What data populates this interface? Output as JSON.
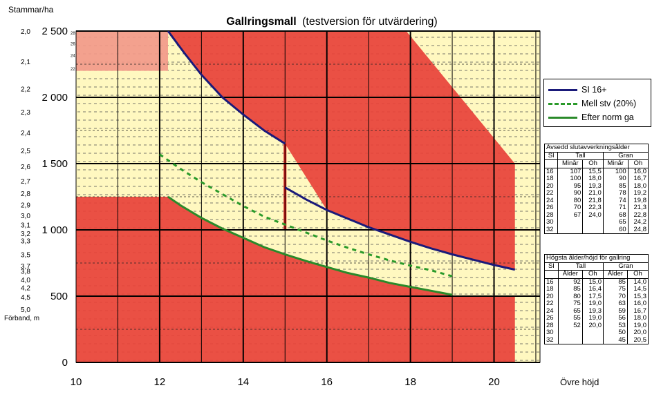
{
  "chart_data": {
    "type": "line",
    "title_bold": "Gallringsmall",
    "title_rest": "(testversion för utvärdering)",
    "ylabel": "Stammar/ha",
    "xlabel": "Övre höjd",
    "xlim": [
      10,
      21.1
    ],
    "ylim": [
      0,
      2500
    ],
    "x_ticks": [
      "10",
      "12",
      "14",
      "16",
      "18",
      "20"
    ],
    "y_ticks": [
      "0",
      "500",
      "1 000",
      "1 500",
      "2 000",
      "2 500"
    ],
    "spacing_label": "Förband, m",
    "spacing_ticks": [
      {
        "label": "2,0",
        "y": 2500
      },
      {
        "label": "2,1",
        "y": 2270
      },
      {
        "label": "2,2",
        "y": 2065
      },
      {
        "label": "2,3",
        "y": 1890
      },
      {
        "label": "2,4",
        "y": 1735
      },
      {
        "label": "2,5",
        "y": 1600
      },
      {
        "label": "2,6",
        "y": 1480
      },
      {
        "label": "2,7",
        "y": 1370
      },
      {
        "label": "2,8",
        "y": 1275
      },
      {
        "label": "2,9",
        "y": 1190
      },
      {
        "label": "3,0",
        "y": 1110
      },
      {
        "label": "3,1",
        "y": 1040
      },
      {
        "label": "3,2",
        "y": 975
      },
      {
        "label": "3,3",
        "y": 920
      },
      {
        "label": "3,5",
        "y": 815
      },
      {
        "label": "3,7",
        "y": 730
      },
      {
        "label": "3,8",
        "y": 690
      },
      {
        "label": "4,0",
        "y": 625
      },
      {
        "label": "4,2",
        "y": 565
      },
      {
        "label": "4,5",
        "y": 495
      },
      {
        "label": "5,0",
        "y": 400
      }
    ],
    "inner_ticks": [
      {
        "label": "28",
        "y": 2490
      },
      {
        "label": "26",
        "y": 2410
      },
      {
        "label": "24",
        "y": 2320
      },
      {
        "label": "22",
        "y": 2220
      }
    ],
    "regions": {
      "colors": {
        "forbidden": "#e8433a",
        "allowed": "#fff8c0",
        "light_band": "#f29a8a",
        "vertical_bar": "#cc1a1a"
      },
      "top_band": {
        "x": [
          10,
          12.2
        ],
        "y_low": 2200,
        "y_high": 2500
      },
      "bottom_left": {
        "x_end": 12.15,
        "y": 1250
      },
      "bottom_right": {
        "x_start": 19,
        "x_end": 20.5,
        "y": 500
      },
      "right_polygon": [
        [
          15.2,
          2500
        ],
        [
          20,
          2500
        ],
        [
          20,
          2500
        ],
        [
          20.5,
          2500
        ]
      ],
      "right_upper": [
        [
          17.9,
          2500
        ],
        [
          20.5,
          1500
        ],
        [
          20.5,
          500
        ],
        [
          20.5,
          0
        ]
      ],
      "vertical_bar": {
        "x": 15.0,
        "y_low": 1000,
        "y_high": 1650
      }
    },
    "series": [
      {
        "name": "SI 16+",
        "color": "#1a1a7a",
        "style": "solid",
        "x": [
          12.2,
          12.6,
          13.0,
          13.5,
          14.0,
          14.5,
          15.0
        ],
        "y": [
          2500,
          2330,
          2170,
          2000,
          1870,
          1750,
          1650
        ]
      },
      {
        "name": "",
        "color": "#1a1a7a",
        "style": "solid",
        "x": [
          15.0,
          15.5,
          16.0,
          16.5,
          17.0,
          17.5,
          18.0,
          18.5,
          19.0,
          19.5,
          20.0,
          20.5
        ],
        "y": [
          1320,
          1230,
          1150,
          1085,
          1020,
          965,
          910,
          860,
          815,
          775,
          735,
          700
        ]
      },
      {
        "name": "Mell stv (20%)",
        "color": "#2a9a2a",
        "style": "dashed",
        "x": [
          12.0,
          12.5,
          13.0,
          13.5,
          14.0,
          14.5,
          15.0,
          15.5,
          16.0,
          16.5,
          17.0,
          17.5,
          18.0,
          18.5,
          19.0
        ],
        "y": [
          1570,
          1460,
          1360,
          1270,
          1180,
          1100,
          1040,
          980,
          920,
          865,
          815,
          770,
          730,
          695,
          650
        ]
      },
      {
        "name": "Efter norm ga",
        "color": "#2a8a2a",
        "style": "solid",
        "x": [
          12.2,
          12.5,
          13.0,
          13.5,
          14.0,
          14.5,
          15.0,
          15.5,
          16.0,
          16.5,
          17.0,
          17.5,
          18.0,
          18.5,
          19.0
        ],
        "y": [
          1250,
          1185,
          1090,
          1010,
          940,
          870,
          815,
          765,
          720,
          675,
          640,
          600,
          570,
          540,
          510
        ]
      }
    ]
  },
  "table1": {
    "caption": "Avsedd slutavverkningsålder",
    "head1": [
      "SI",
      "Tall",
      "Gran"
    ],
    "head2": [
      "Minår",
      "Öh",
      "Minår",
      "Öh"
    ],
    "rows": [
      [
        "16",
        "107",
        "15,5",
        "100",
        "16,0"
      ],
      [
        "18",
        "100",
        "18,0",
        "90",
        "16,7"
      ],
      [
        "20",
        "95",
        "19,3",
        "85",
        "18,0"
      ],
      [
        "22",
        "90",
        "21,0",
        "78",
        "19,2"
      ],
      [
        "24",
        "80",
        "21,8",
        "74",
        "19,8"
      ],
      [
        "26",
        "70",
        "22,3",
        "71",
        "21,3"
      ],
      [
        "28",
        "67",
        "24,0",
        "68",
        "22,8"
      ],
      [
        "30",
        "",
        "",
        "65",
        "24,2"
      ],
      [
        "32",
        "",
        "",
        "60",
        "24,8"
      ]
    ]
  },
  "table2": {
    "caption": "Högsta ålder/höjd för gallring",
    "head1": [
      "SI",
      "Tall",
      "Gran"
    ],
    "head2": [
      "Ålder",
      "Öh",
      "Ålder",
      "Öh"
    ],
    "rows": [
      [
        "16",
        "92",
        "15,0",
        "85",
        "14,0"
      ],
      [
        "18",
        "85",
        "16,4",
        "75",
        "14,5"
      ],
      [
        "20",
        "80",
        "17,5",
        "70",
        "15,3"
      ],
      [
        "22",
        "75",
        "19,0",
        "63",
        "16,0"
      ],
      [
        "24",
        "65",
        "19,3",
        "59",
        "16,7"
      ],
      [
        "26",
        "55",
        "19,0",
        "56",
        "18,0"
      ],
      [
        "28",
        "52",
        "20,0",
        "53",
        "19,0"
      ],
      [
        "30",
        "",
        "",
        "50",
        "20,0"
      ],
      [
        "32",
        "",
        "",
        "45",
        "20,5"
      ]
    ]
  }
}
